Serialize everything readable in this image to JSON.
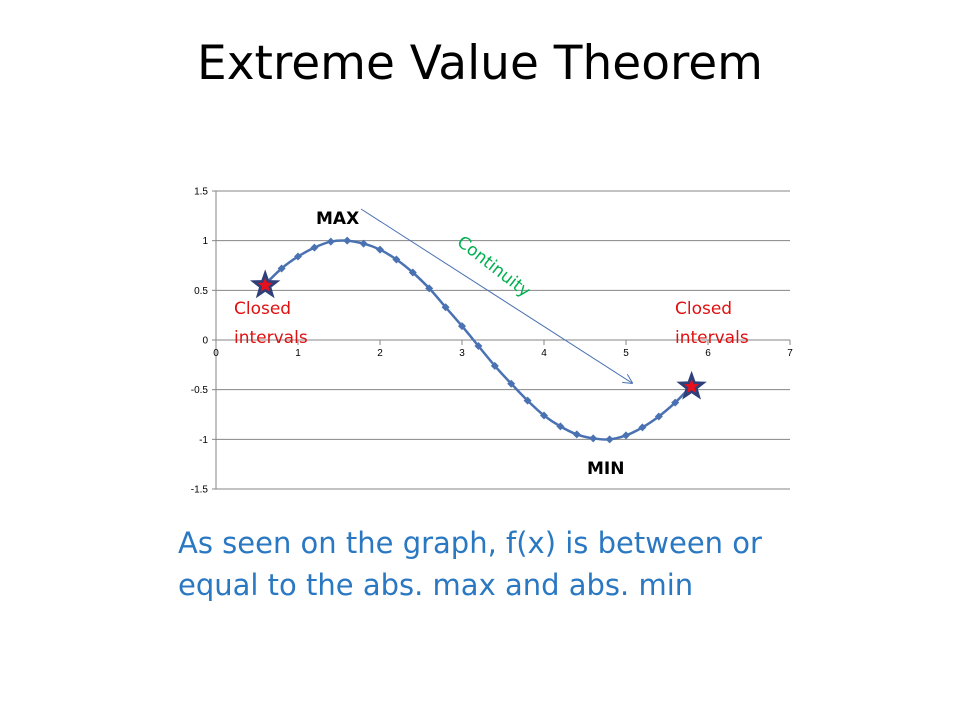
{
  "slide": {
    "title": "Extreme Value Theorem",
    "caption_line1": "As seen on the graph, f(x) is between or",
    "caption_line2": "equal to the abs. max and abs. min"
  },
  "chart_data": {
    "type": "line",
    "title": "",
    "xlabel": "",
    "ylabel": "",
    "xlim": [
      0,
      7
    ],
    "ylim": [
      -1.5,
      1.5
    ],
    "x_ticks": [
      0,
      1,
      2,
      3,
      4,
      5,
      6,
      7
    ],
    "y_ticks": [
      1.5,
      1,
      0.5,
      0,
      -0.5,
      -1,
      -1.5
    ],
    "y_tick_labels": [
      "1.5",
      "1",
      "0.5",
      "0",
      "-0.5",
      "-1",
      "-1.5"
    ],
    "grid": "horizontal",
    "series": [
      {
        "x": [
          0.6,
          0.8,
          1.0,
          1.2,
          1.4,
          1.6,
          1.8,
          2.0,
          2.2,
          2.4,
          2.6,
          2.8,
          3.0,
          3.2,
          3.4,
          3.6,
          3.8,
          4.0,
          4.2,
          4.4,
          4.6,
          4.8,
          5.0,
          5.2,
          5.4,
          5.6,
          5.8
        ],
        "y": [
          0.56,
          0.72,
          0.84,
          0.93,
          0.99,
          1.0,
          0.97,
          0.91,
          0.81,
          0.68,
          0.52,
          0.33,
          0.14,
          -0.06,
          -0.26,
          -0.44,
          -0.61,
          -0.76,
          -0.87,
          -0.95,
          -0.99,
          -1.0,
          -0.96,
          -0.88,
          -0.77,
          -0.63,
          -0.46
        ],
        "color": "#4a72b2"
      }
    ],
    "annotations": {
      "max_label": "MAX",
      "min_label": "MIN",
      "continuity_label": "Continuity",
      "closed_left_line1": "Closed",
      "closed_left_line2": "intervals",
      "closed_right_line1": "Closed",
      "closed_right_line2": "intervals"
    },
    "colors": {
      "line": "#4a72b2",
      "arrow": "#4a72b2",
      "continuity": "#00b050",
      "closed": "#e01010",
      "star_outer": "#2e3f7a",
      "star_inner": "#e8101a",
      "grid": "#868686",
      "caption": "#2a78c2"
    },
    "endpoints": [
      {
        "x": 0.6,
        "y": 0.56
      },
      {
        "x": 5.8,
        "y": -0.46
      }
    ]
  }
}
